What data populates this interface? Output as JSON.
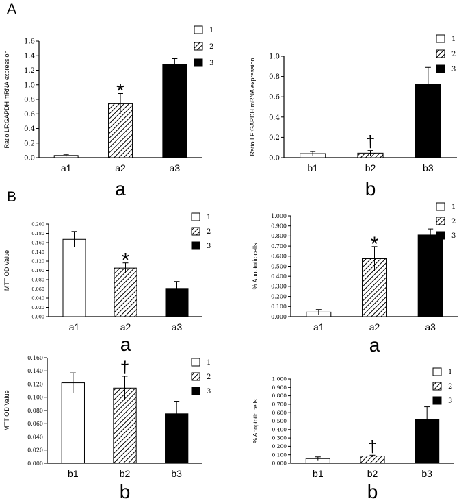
{
  "figure": {
    "panel_A_label": "A",
    "panel_B_label": "B"
  },
  "colors": {
    "white": "#ffffff",
    "black": "#000000",
    "hatch": "#000000"
  },
  "chart_data": [
    {
      "id": "chart1",
      "type": "bar",
      "title": "",
      "ylabel": "Ratio LF:GAPDH mRNA expression",
      "xlabel": "a",
      "ylim": [
        0,
        1.6
      ],
      "yticks": [
        "0.0",
        "0.2",
        "0.4",
        "0.6",
        "0.8",
        "1.0",
        "1.2",
        "1.4",
        "1.6"
      ],
      "categories": [
        "a1",
        "a2",
        "a3"
      ],
      "values": [
        0.03,
        0.74,
        1.28
      ],
      "errors": [
        0.015,
        0.14,
        0.08
      ],
      "fills": [
        "white",
        "hatch",
        "black"
      ],
      "annotations": [
        "",
        "*",
        ""
      ],
      "legend": [
        "1",
        "2",
        "3"
      ]
    },
    {
      "id": "chart2",
      "type": "bar",
      "title": "",
      "ylabel": "Ratio LF:GAPDH mRNA expression",
      "xlabel": "b",
      "ylim": [
        0,
        1.0
      ],
      "yticks": [
        "0.0",
        "0.2",
        "0.4",
        "0.6",
        "0.8",
        "1.0"
      ],
      "categories": [
        "b1",
        "b2",
        "b3"
      ],
      "values": [
        0.04,
        0.045,
        0.72
      ],
      "errors": [
        0.02,
        0.025,
        0.17
      ],
      "fills": [
        "white",
        "hatch",
        "black"
      ],
      "annotations": [
        "",
        "†",
        ""
      ],
      "legend": [
        "1",
        "2",
        "3"
      ]
    },
    {
      "id": "chart3",
      "type": "bar",
      "title": "",
      "ylabel": "MTT OD Value",
      "xlabel": "a",
      "ylim": [
        0,
        0.2
      ],
      "yticks": [
        "0.000",
        "0.020",
        "0.040",
        "0.060",
        "0.080",
        "0.100",
        "0.120",
        "0.140",
        "0.160",
        "0.180",
        "0.200"
      ],
      "categories": [
        "a1",
        "a2",
        "a3"
      ],
      "values": [
        0.167,
        0.105,
        0.061
      ],
      "errors": [
        0.017,
        0.011,
        0.015
      ],
      "fills": [
        "white",
        "hatch",
        "black"
      ],
      "annotations": [
        "",
        "*",
        ""
      ],
      "legend": [
        "1",
        "2",
        "3"
      ]
    },
    {
      "id": "chart4",
      "type": "bar",
      "title": "",
      "ylabel": "% Apoptotic cells",
      "xlabel": "a",
      "ylim": [
        0,
        1.0
      ],
      "yticks": [
        "0.000",
        "0.100",
        "0.200",
        "0.300",
        "0.400",
        "0.500",
        "0.600",
        "0.700",
        "0.800",
        "0.900",
        "1.000"
      ],
      "categories": [
        "a1",
        "a2",
        "a3"
      ],
      "values": [
        0.045,
        0.575,
        0.81
      ],
      "errors": [
        0.025,
        0.12,
        0.06
      ],
      "fills": [
        "white",
        "hatch",
        "black"
      ],
      "annotations": [
        "",
        "*",
        ""
      ],
      "legend": [
        "1",
        "2",
        "3"
      ]
    },
    {
      "id": "chart5",
      "type": "bar",
      "title": "",
      "ylabel": "MTT OD Value",
      "xlabel": "b",
      "ylim": [
        0,
        0.16
      ],
      "yticks": [
        "0.000",
        "0.020",
        "0.040",
        "0.060",
        "0.080",
        "0.100",
        "0.120",
        "0.140",
        "0.160"
      ],
      "categories": [
        "b1",
        "b2",
        "b3"
      ],
      "values": [
        0.122,
        0.114,
        0.075
      ],
      "errors": [
        0.015,
        0.018,
        0.019
      ],
      "fills": [
        "white",
        "hatch",
        "black"
      ],
      "annotations": [
        "",
        "†",
        ""
      ],
      "legend": [
        "1",
        "2",
        "3"
      ]
    },
    {
      "id": "chart6",
      "type": "bar",
      "title": "",
      "ylabel": "% Apoptotic cells",
      "xlabel": "b",
      "ylim": [
        0,
        1.0
      ],
      "yticks": [
        "0.000",
        "0.100",
        "0.200",
        "0.300",
        "0.400",
        "0.500",
        "0.600",
        "0.700",
        "0.800",
        "0.900",
        "1.000"
      ],
      "categories": [
        "b1",
        "b2",
        "b3"
      ],
      "values": [
        0.055,
        0.085,
        0.52
      ],
      "errors": [
        0.02,
        0.01,
        0.15
      ],
      "fills": [
        "white",
        "hatch",
        "black"
      ],
      "annotations": [
        "",
        "†",
        ""
      ],
      "legend": [
        "1",
        "2",
        "3"
      ]
    }
  ]
}
